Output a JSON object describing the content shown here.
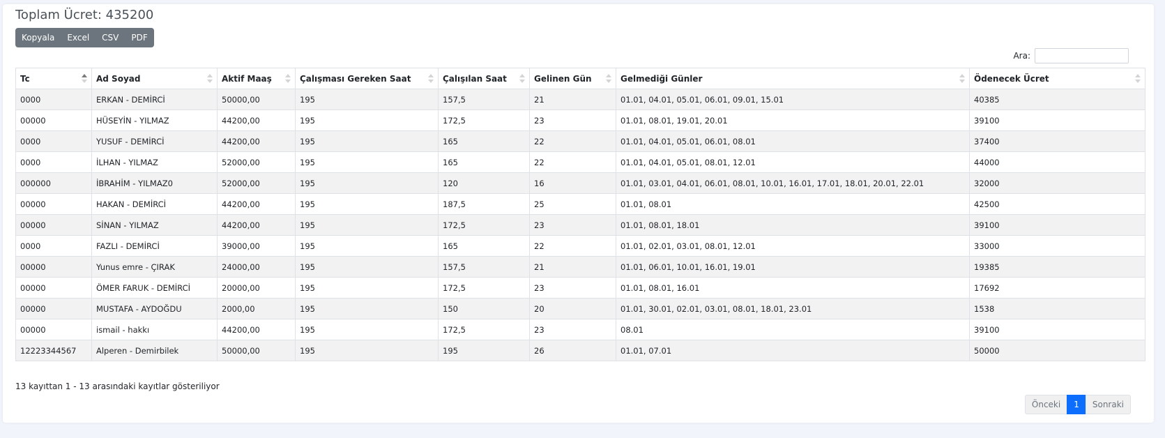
{
  "summary": {
    "title": "Toplam Ücret: 435200"
  },
  "export_buttons": [
    "Kopyala",
    "Excel",
    "CSV",
    "PDF"
  ],
  "search": {
    "label": "Ara:",
    "value": ""
  },
  "table": {
    "columns": [
      "Tc",
      "Ad Soyad",
      "Aktif Maaş",
      "Çalışması Gereken Saat",
      "Çalışılan Saat",
      "Gelinen Gün",
      "Gelmediği Günler",
      "Ödenecek Ücret"
    ],
    "rows": [
      [
        "0000",
        "ERKAN - DEMİRCİ",
        "50000,00",
        "195",
        "157,5",
        "21",
        "01.01, 04.01, 05.01, 06.01, 09.01, 15.01",
        "40385"
      ],
      [
        "00000",
        "HÜSEYİN - YILMAZ",
        "44200,00",
        "195",
        "172,5",
        "23",
        "01.01, 08.01, 19.01, 20.01",
        "39100"
      ],
      [
        "0000",
        "YUSUF - DEMİRCİ",
        "44200,00",
        "195",
        "165",
        "22",
        "01.01, 04.01, 05.01, 06.01, 08.01",
        "37400"
      ],
      [
        "0000",
        "İLHAN - YILMAZ",
        "52000,00",
        "195",
        "165",
        "22",
        "01.01, 04.01, 05.01, 08.01, 12.01",
        "44000"
      ],
      [
        "000000",
        "İBRAHİM - YILMAZ0",
        "52000,00",
        "195",
        "120",
        "16",
        "01.01, 03.01, 04.01, 06.01, 08.01, 10.01, 16.01, 17.01, 18.01, 20.01, 22.01",
        "32000"
      ],
      [
        "00000",
        "HAKAN - DEMİRCİ",
        "44200,00",
        "195",
        "187,5",
        "25",
        "01.01, 08.01",
        "42500"
      ],
      [
        "00000",
        "SİNAN - YILMAZ",
        "44200,00",
        "195",
        "172,5",
        "23",
        "01.01, 08.01, 18.01",
        "39100"
      ],
      [
        "0000",
        "FAZLI - DEMİRCİ",
        "39000,00",
        "195",
        "165",
        "22",
        "01.01, 02.01, 03.01, 08.01, 12.01",
        "33000"
      ],
      [
        "00000",
        "Yunus emre - ÇIRAK",
        "24000,00",
        "195",
        "157,5",
        "21",
        "01.01, 06.01, 10.01, 16.01, 19.01",
        "19385"
      ],
      [
        "00000",
        "ÖMER FARUK - DEMİRCİ",
        "20000,00",
        "195",
        "172,5",
        "23",
        "01.01, 08.01, 16.01",
        "17692"
      ],
      [
        "00000",
        "MUSTAFA - AYDOĞDU",
        "2000,00",
        "195",
        "150",
        "20",
        "01.01, 30.01, 02.01, 03.01, 08.01, 18.01, 23.01",
        "1538"
      ],
      [
        "00000",
        "ismail - hakkı",
        "44200,00",
        "195",
        "172,5",
        "23",
        "08.01",
        "39100"
      ],
      [
        "12223344567",
        "Alperen - Demirbilek",
        "50000,00",
        "195",
        "195",
        "26",
        "01.01, 07.01",
        "50000"
      ]
    ]
  },
  "info_text": "13 kayıttan 1 - 13 arasındaki kayıtlar gösteriliyor",
  "pagination": {
    "prev": "Önceki",
    "current": "1",
    "next": "Sonraki"
  },
  "colors": {
    "accent": "#0d6efd",
    "button_group": "#6c757d",
    "stripe": "#f2f2f2"
  }
}
